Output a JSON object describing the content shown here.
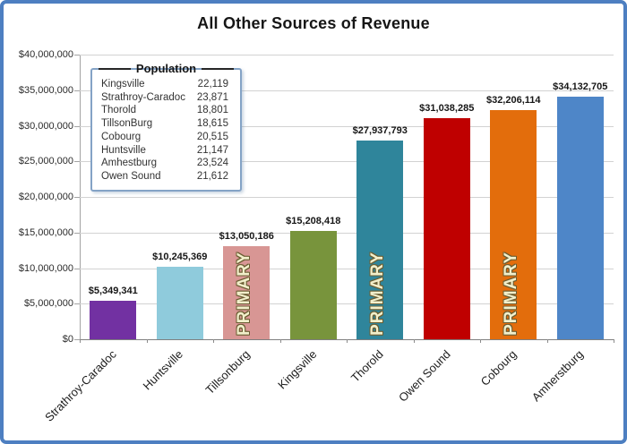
{
  "title": "All Other Sources of Revenue",
  "legend": {
    "title": "Population",
    "entries": [
      {
        "name": "Kingsville",
        "value": "22,119"
      },
      {
        "name": "Strathroy-Caradoc",
        "value": "23,871"
      },
      {
        "name": "Thorold",
        "value": "18,801"
      },
      {
        "name": "TillsonBurg",
        "value": "18,615"
      },
      {
        "name": "Cobourg",
        "value": "20,515"
      },
      {
        "name": "Huntsville",
        "value": "21,147"
      },
      {
        "name": "Amhestburg",
        "value": "23,524"
      },
      {
        "name": "Owen Sound",
        "value": "21,612"
      }
    ]
  },
  "chart_data": {
    "type": "bar",
    "title": "All Other Sources of Revenue",
    "categories": [
      "Strathroy-Caradoc",
      "Huntsville",
      "Tillsonburg",
      "Kingsville",
      "Thorold",
      "Owen Sound",
      "Cobourg",
      "Amherstburg"
    ],
    "values": [
      5349341,
      10245369,
      13050186,
      15208418,
      27937793,
      31038285,
      32206114,
      34132705
    ],
    "value_labels": [
      "$5,349,341",
      "$10,245,369",
      "$13,050,186",
      "$15,208,418",
      "$27,937,793",
      "$31,038,285",
      "$32,206,114",
      "$34,132,705"
    ],
    "bar_colors": [
      "#7231A2",
      "#8FCBDC",
      "#D89694",
      "#78943C",
      "#2F859B",
      "#BF0000",
      "#E36D0C",
      "#4E86C8"
    ],
    "primary_flags": [
      false,
      false,
      true,
      false,
      true,
      false,
      true,
      false
    ],
    "primary_label": "PRIMARY",
    "ylim": [
      0,
      40000000
    ],
    "ytick_step": 5000000,
    "ytick_labels": [
      "$0",
      "$5,000,000",
      "$10,000,000",
      "$15,000,000",
      "$20,000,000",
      "$25,000,000",
      "$30,000,000",
      "$35,000,000",
      "$40,000,000"
    ],
    "grid": true,
    "legend_position": "upper-left"
  },
  "colors": {
    "frame_border": "#4d7fc1",
    "gridline": "#d2d2d2",
    "axis": "#7f7f7f",
    "primary_text": "#f2efcb",
    "primary_outline": "#6a5d32",
    "legend_border": "#84a3c6"
  }
}
